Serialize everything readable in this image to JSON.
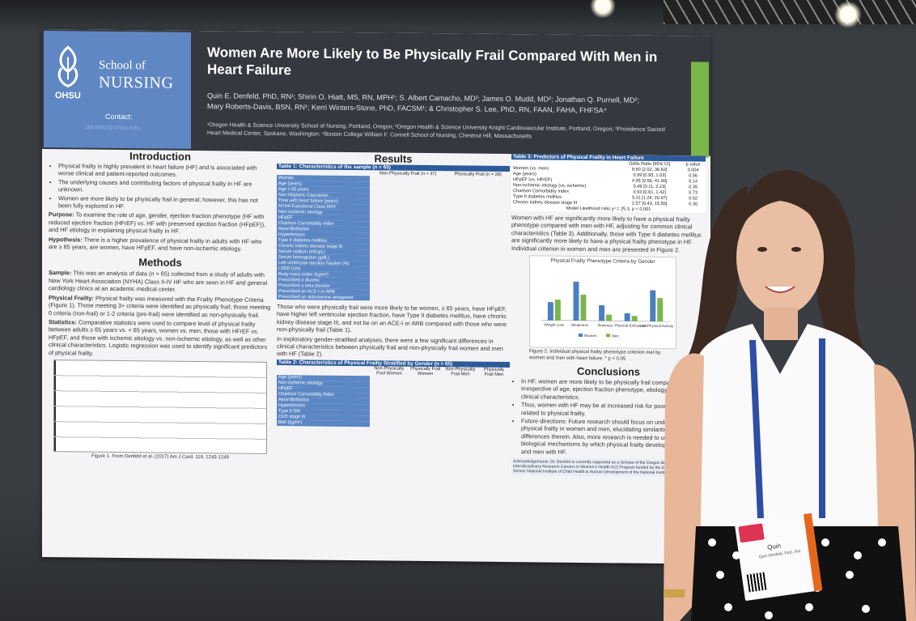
{
  "poster": {
    "logo": {
      "ohsu": "OHSU",
      "school": "School of",
      "nursing": "NURSING",
      "contact": "Contact:",
      "email": "denfeld@ohsu.edu"
    },
    "title": "Women Are More Likely to Be Physically Frail Compared With Men in Heart Failure",
    "authors": "Quin E. Denfeld, PhD, RN¹; Shirin O. Hiatt, MS, RN, MPH¹; S. Albert Camacho, MD²; James O. Mudd, MD²; Jonathan Q. Purnell, MD²; Mary Roberts-Davis, BSN, RN¹; Kerri Winters-Stone, PhD, FACSM¹; & Christopher S. Lee, PhD, RN, FAAN, FAHA, FHFSA⁴",
    "affiliations": "¹Oregon Health & Science University School of Nursing, Portland, Oregon; ²Oregon Health & Science University Knight Cardiovascular Institute, Portland, Oregon; ³Providence Sacred Heart Medical Center, Spokane, Washington; ⁴Boston College William F. Connell School of Nursing, Chestnut Hill, Massachusetts",
    "introduction": {
      "heading": "Introduction",
      "bullets": [
        "Physical frailty is highly prevalent in heart failure (HF) and is associated with worse clinical and patient-reported outcomes.",
        "The underlying causes and contributing factors of physical frailty in HF are unknown.",
        "Women are more likely to be physically frail in general; however, this has not been fully explored in HF."
      ],
      "purpose_label": "Purpose:",
      "purpose": "To examine the role of age, gender, ejection fraction phenotype (HF with reduced ejection fraction (HFrEF) vs. HF with preserved ejection fraction (HFpEF)), and HF etiology in explaining physical frailty in HF.",
      "hypothesis_label": "Hypothesis:",
      "hypothesis": "There is a higher prevalence of physical frailty in adults with HF who are ≥ 65 years, are women, have HFpEF, and have non-ischemic etiology."
    },
    "methods": {
      "heading": "Methods",
      "sample_label": "Sample:",
      "sample": "This was an analysis of data (n = 65) collected from a study of adults with New York Heart Association (NYHA) Class II-IV HF who are seen in HF and general cardiology clinics at an academic medical center.",
      "frailty_label": "Physical Frailty:",
      "frailty": "Physical frailty was measured with the Frailty Phenotype Criteria (Figure 1). Those meeting 3+ criteria were identified as physically frail; those meeting 0 criteria (non-frail) or 1-2 criteria (pre-frail) were identified as non-physically frail.",
      "stats_label": "Statistics:",
      "stats": "Comparative statistics were used to compare level of physical frailty between adults ≥ 65 years vs. < 65 years, women vs. men, those with HFrEF vs. HFpEF, and those with ischemic etiology vs. non-ischemic etiology, as well as other clinical characteristics. Logistic regression was used to identify significant predictors of physical frailty.",
      "figure_caption": "Figure 1. From Denfeld et al. (2017) Am J Card. 119, 1243-1249"
    },
    "results": {
      "heading": "Results",
      "table1_title": "Table 1: Characteristics of the sample (n = 65)",
      "table1_cols": [
        "",
        "Non-Physically Frail (n = 37)",
        "Physically Frail (n = 28)"
      ],
      "table1_rows": [
        "Women",
        "Age (years)",
        "Age ≥ 65 years",
        "Non-Hispanic Caucasian",
        "Time with heart failure (years)",
        "NYHA Functional Class III/IV",
        "Non-ischemic etiology",
        "HFpEF",
        "Charlson Comorbidity Index",
        "Atrial fibrillation",
        "Hypertension",
        "Type II diabetes mellitus",
        "Chronic kidney disease stage III",
        "Serum sodium (mEq/L)",
        "Serum hemoglobin (g/dL)",
        "Left ventricular ejection fraction (%)",
        "LVDD (cm)",
        "Body mass index (kg/m²)",
        "Prescribed a diuretic",
        "Prescribed a beta blocker",
        "Prescribed an ACE-I or ARB",
        "Prescribed an aldosterone antagonist"
      ],
      "para1": "Those who were physically frail were more likely to be women, ≥ 65 years, have HFpEF, have higher left ventricular ejection fraction, have Type II diabetes mellitus, have chronic kidney disease stage III, and not be on an ACE-I or ARB compared with those who were non-physically frail (Table 1).",
      "para2": "In exploratory gender-stratified analyses, there were a few significant differences in clinical characteristics between physically frail and non-physically frail women and men with HF (Table 2).",
      "table2_title": "Table 2: Characteristics of Physical Frailty Stratified by Gender (n = 65)",
      "table2_cols": [
        "",
        "Non-Physically Frail Women",
        "Physically Frail Women",
        "Non-Physically Frail Men",
        "Physically Frail Men"
      ],
      "table2_rows": [
        "Age (years)",
        "Non-ischemic etiology",
        "HFpEF",
        "Charlson Comorbidity Index",
        "Atrial fibrillation",
        "Hypertension",
        "Type II DM",
        "CKD stage III",
        "BMI (kg/m²)"
      ]
    },
    "predictors": {
      "table3_title": "Table 3: Predictors of Physical Frailty in Heart Failure",
      "table3_head": [
        "",
        "Odds Ratio [95% CI]",
        "p value"
      ],
      "table3_rows": [
        [
          "Women (vs. men)",
          "8.60 [2.02, 36.62]",
          "0.004"
        ],
        [
          "Age (years)",
          "0.99 [0.95, 1.03]",
          "0.56"
        ],
        [
          "HFpEF (vs. HFrEF)",
          "4.95 [0.56, 41.90]",
          "0.14"
        ],
        [
          "Non-ischemic etiology (vs. ischemic)",
          "0.49 [0.11, 2.23]",
          "0.35"
        ],
        [
          "Charlson Comorbidity Index",
          "0.93 [0.61, 1.42]",
          "0.73"
        ],
        [
          "Type II diabetes mellitus",
          "5.11 [1.24, 20.97]",
          "0.02"
        ],
        [
          "Chronic kidney disease stage III",
          "2.57 [0.43, 15.50]",
          "0.30"
        ]
      ],
      "model_line": "Model Likelihood ratio χ² = 25.3, p < 0.001",
      "para": "Women with HF are significantly more likely to have a physical frailty phenotype compared with men with HF, adjusting for common clinical characteristics (Table 3). Additionally, those with Type II diabetes mellitus are significantly more likely to have a physical frailty phenotype in HF. Individual criterion in women and men are presented in Figure 2.",
      "fig2_title": "Physical Frailty Phenotype Criteria by Gender",
      "fig2_categories": [
        "Weight Loss",
        "Weakness",
        "Slowness",
        "Physical Exhaustion",
        "Low Physical Activity"
      ],
      "fig2_series": [
        {
          "name": "Women",
          "color": "#4a7fc1",
          "values": [
            35,
            75,
            30,
            15,
            60
          ]
        },
        {
          "name": "Men",
          "color": "#7ab648",
          "values": [
            40,
            50,
            12,
            10,
            45
          ]
        }
      ],
      "fig2_caption": "Figure 2. Individual physical frailty phenotype criterion met by women and men with heart failure. * p < 0.05"
    },
    "conclusions": {
      "heading": "Conclusions",
      "bullets": [
        "In HF, women are more likely to be physically frail compared with men, irrespective of age, ejection fraction phenotype, etiology, and other clinical characteristics.",
        "Thus, women with HF may be at increased risk for poor outcomes related to physical frailty.",
        "Future directions: Future research should focus on understanding physical frailty in women and men, elucidating similarities and differences therein. Also, more research is needed to understand the biological mechanisms by which physical frailty develops in women and men with HF."
      ],
      "ack": "Acknowledgements: Dr. Denfeld is currently supported as a Scholar of the Oregon Building Interdisciplinary Research Careers in Women's Health K12 Program funded by the Eunice Kennedy Shriver National Institute of Child Health & Human Development of the National Institutes of Health."
    }
  },
  "badge": {
    "name": "Quin",
    "subtitle": "Quin Denfeld, PhD, RN"
  }
}
